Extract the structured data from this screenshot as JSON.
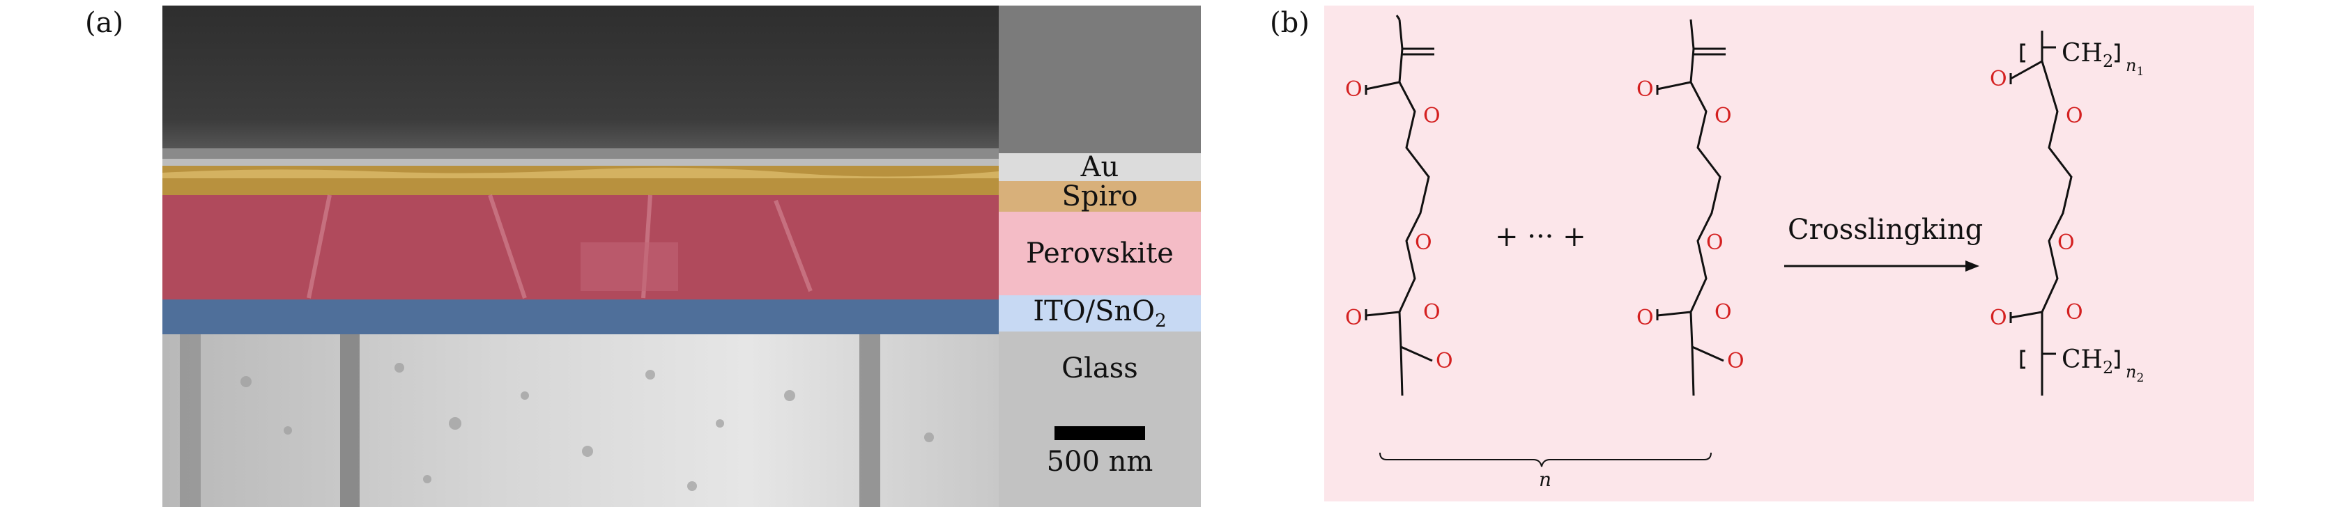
{
  "panel_a": {
    "label": "(a)",
    "layers": [
      {
        "name": "Au",
        "color": "#dcdcdc"
      },
      {
        "name": "Spiro",
        "color": "#d8b07a"
      },
      {
        "name": "Perovskite",
        "color": "#f4bcc6"
      },
      {
        "name": "ITO/SnO",
        "subscript": "2",
        "color": "#c7d9f3"
      },
      {
        "name": "Glass",
        "color": "#c2c2c2"
      }
    ],
    "top_color": "#7b7b7b",
    "scale_bar": "500 nm"
  },
  "panel_b": {
    "label": "(b)",
    "oxygen_label": "O",
    "plus_dots": "+ ··· +",
    "brace_label": "n",
    "arrow_label": "Crosslingking",
    "ch2": "CH",
    "ch2_sub": "2",
    "n1": "n",
    "n1_sub": "1",
    "n2": "n",
    "n2_sub": "2",
    "oxygen_color": "#d42020"
  }
}
